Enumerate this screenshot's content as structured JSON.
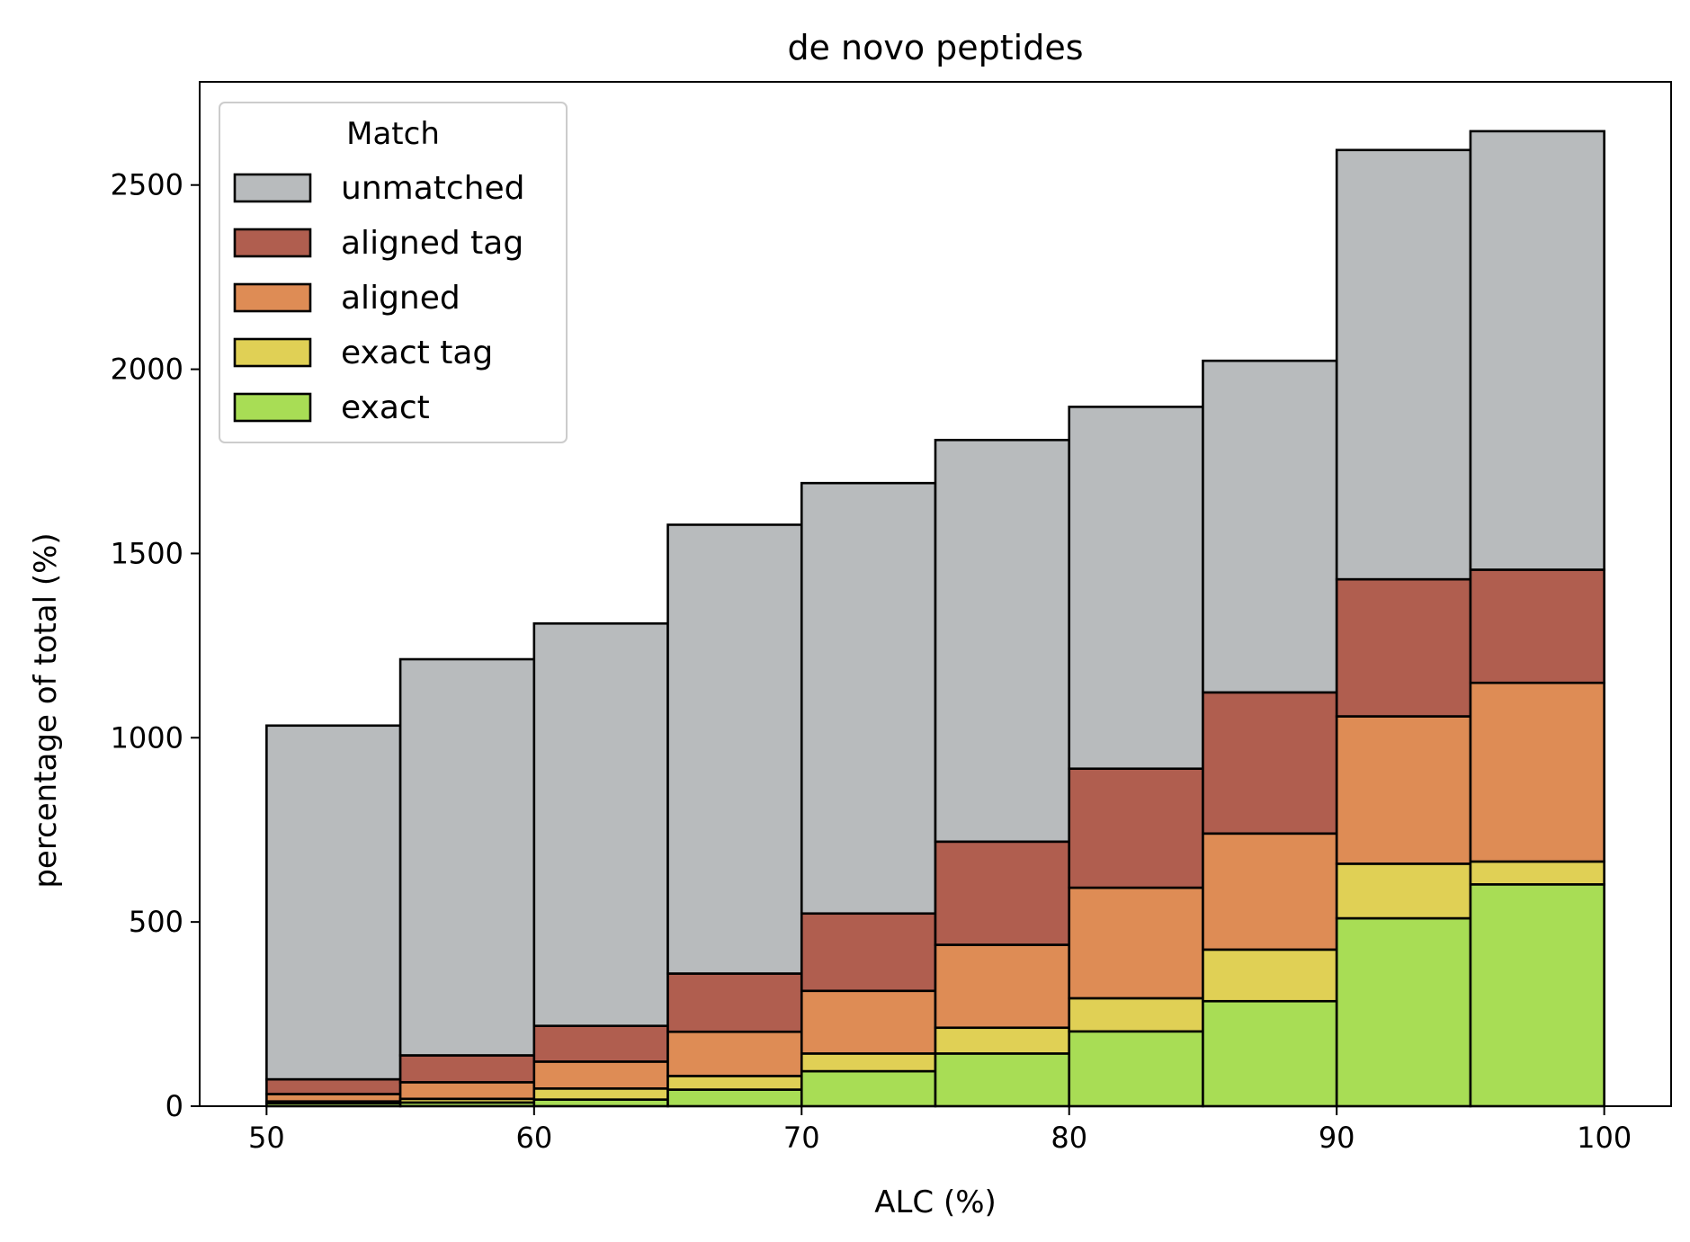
{
  "chart_data": {
    "type": "bar",
    "stacked": true,
    "title": "de novo peptides",
    "xlabel": "ALC (%)",
    "ylabel": "percentage of total (%)",
    "x_bin_edges": [
      50,
      55,
      60,
      65,
      70,
      75,
      80,
      85,
      90,
      95,
      100
    ],
    "xlim": [
      47.5,
      102.5
    ],
    "ylim": [
      0,
      2780
    ],
    "x_ticks": [
      50,
      60,
      70,
      80,
      90,
      100
    ],
    "y_ticks": [
      0,
      500,
      1000,
      1500,
      2000,
      2500
    ],
    "grid": false,
    "legend": {
      "title": "Match",
      "position": "top-left",
      "entries": [
        "unmatched",
        "aligned tag",
        "aligned",
        "exact tag",
        "exact"
      ]
    },
    "series": [
      {
        "name": "exact",
        "color": "#a8dd55",
        "values": [
          8,
          10,
          18,
          45,
          95,
          143,
          203,
          285,
          510,
          602
        ]
      },
      {
        "name": "exact tag",
        "color": "#e0d055",
        "values": [
          5,
          10,
          30,
          37,
          48,
          70,
          90,
          140,
          148,
          62
        ]
      },
      {
        "name": "aligned",
        "color": "#de8c55",
        "values": [
          20,
          45,
          73,
          120,
          170,
          225,
          300,
          315,
          400,
          485
        ]
      },
      {
        "name": "aligned tag",
        "color": "#b05e4f",
        "values": [
          40,
          73,
          97,
          158,
          210,
          280,
          323,
          383,
          372,
          307
        ]
      },
      {
        "name": "unmatched",
        "color": "#b8bbbd",
        "values": [
          960,
          1075,
          1092,
          1218,
          1168,
          1090,
          982,
          900,
          1165,
          1190
        ]
      }
    ]
  }
}
